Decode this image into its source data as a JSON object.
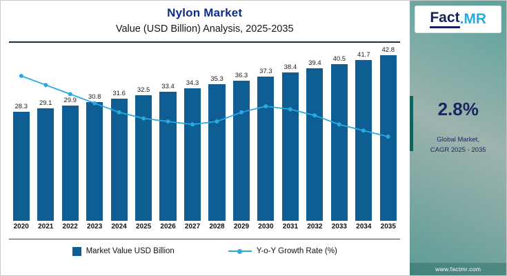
{
  "header": {
    "title": "Nylon Market",
    "subtitle": "Value (USD Billion) Analysis, 2025-2035"
  },
  "chart_data": {
    "type": "bar",
    "title": "Nylon Market",
    "subtitle": "Value (USD Billion) Analysis, 2025-2035",
    "categories": [
      "2020",
      "2021",
      "2022",
      "2023",
      "2024",
      "2025",
      "2026",
      "2027",
      "2028",
      "2029",
      "2030",
      "2031",
      "2032",
      "2033",
      "2034",
      "2035"
    ],
    "series": [
      {
        "name": "Market Value USD Billion",
        "type": "bar",
        "color": "#0e5e93",
        "values": [
          28.3,
          29.1,
          29.9,
          30.8,
          31.6,
          32.5,
          33.4,
          34.3,
          35.3,
          36.3,
          37.3,
          38.4,
          39.4,
          40.5,
          41.7,
          42.8
        ]
      },
      {
        "name": "Y-o-Y Growth Rate (%)",
        "type": "line",
        "color": "#29a9e1",
        "values_estimated_from_pixels": true,
        "values": [
          3.6,
          3.45,
          3.3,
          3.15,
          3.0,
          2.9,
          2.85,
          2.8,
          2.85,
          3.0,
          3.1,
          3.05,
          2.95,
          2.8,
          2.7,
          2.6
        ]
      }
    ],
    "ylim": [
      0,
      45
    ],
    "growth_axis_range": [
      2.6,
      3.6
    ],
    "data_labels": true,
    "grid": false,
    "legend_position": "bottom"
  },
  "legend": {
    "bar_label": "Market Value USD Billion",
    "line_label": "Y-o-Y Growth Rate (%)"
  },
  "sidebar": {
    "logo_fact": "Fact",
    "logo_mr": ".MR",
    "cagr_value": "2.8%",
    "cagr_label_line1": "Global Market,",
    "cagr_label_line2": "CAGR 2025 - 2035",
    "website": "www.factmr.com"
  },
  "colors": {
    "bar": "#0e5e93",
    "line": "#29a9e1",
    "title_text": "#0a2e8c",
    "divider": "#1e2a4a",
    "sidebar_accent": "#11645d",
    "cagr_text": "#17265c",
    "logo_navy": "#12235f",
    "logo_blue": "#2aa9e0"
  }
}
